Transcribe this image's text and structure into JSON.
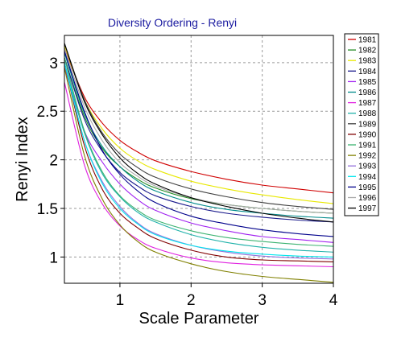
{
  "chart_data": {
    "type": "line",
    "title": "Diversity Ordering - Renyi",
    "title_color": "#1a1aa0",
    "xlabel": "Scale Parameter",
    "ylabel": "Renyi Index",
    "xlim": [
      0.22,
      4
    ],
    "ylim": [
      0.73,
      3.28
    ],
    "x_ticks": [
      1,
      2,
      3,
      4
    ],
    "x_tick_labels": [
      "1",
      "2",
      "3",
      "4"
    ],
    "y_ticks": [
      1,
      1.5,
      2,
      2.5,
      3
    ],
    "y_tick_labels": [
      "1",
      "1.5",
      "2",
      "2.5",
      "3"
    ],
    "grid": true,
    "grid_style": "dashed",
    "legend_position": "right",
    "x": [
      0.22,
      0.5,
      0.75,
      1,
      1.25,
      1.5,
      2,
      2.5,
      3,
      3.5,
      4
    ],
    "series": [
      {
        "name": "1981",
        "color": "#d00000",
        "values": [
          3.15,
          2.65,
          2.38,
          2.2,
          2.08,
          1.99,
          1.88,
          1.8,
          1.74,
          1.7,
          1.66
        ]
      },
      {
        "name": "1982",
        "color": "#228b22",
        "values": [
          3.05,
          2.45,
          2.12,
          1.93,
          1.8,
          1.71,
          1.6,
          1.54,
          1.5,
          1.47,
          1.45
        ]
      },
      {
        "name": "1983",
        "color": "#e8e800",
        "values": [
          3.18,
          2.62,
          2.32,
          2.12,
          1.99,
          1.9,
          1.78,
          1.7,
          1.64,
          1.59,
          1.55
        ]
      },
      {
        "name": "1984",
        "color": "#1a1a8c",
        "values": [
          3.05,
          2.42,
          2.09,
          1.87,
          1.73,
          1.63,
          1.52,
          1.45,
          1.41,
          1.38,
          1.36
        ]
      },
      {
        "name": "1985",
        "color": "#a020f0",
        "values": [
          2.95,
          2.3,
          1.98,
          1.75,
          1.59,
          1.48,
          1.35,
          1.27,
          1.21,
          1.18,
          1.15
        ]
      },
      {
        "name": "1986",
        "color": "#008b8b",
        "values": [
          3.1,
          2.48,
          2.14,
          1.93,
          1.78,
          1.68,
          1.56,
          1.49,
          1.45,
          1.42,
          1.4
        ]
      },
      {
        "name": "1987",
        "color": "#e020e0",
        "values": [
          2.8,
          1.95,
          1.55,
          1.32,
          1.18,
          1.09,
          0.99,
          0.94,
          0.92,
          0.91,
          0.9
        ]
      },
      {
        "name": "1988",
        "color": "#20b2aa",
        "values": [
          3.0,
          2.28,
          1.86,
          1.62,
          1.46,
          1.36,
          1.23,
          1.15,
          1.1,
          1.07,
          1.05
        ]
      },
      {
        "name": "1989",
        "color": "#404040",
        "values": [
          3.2,
          2.62,
          2.28,
          2.06,
          1.92,
          1.82,
          1.7,
          1.62,
          1.56,
          1.52,
          1.49
        ]
      },
      {
        "name": "1990",
        "color": "#800000",
        "values": [
          3.0,
          2.15,
          1.7,
          1.45,
          1.3,
          1.19,
          1.07,
          1.0,
          0.97,
          0.96,
          0.95
        ]
      },
      {
        "name": "1991",
        "color": "#3cb371",
        "values": [
          3.05,
          2.3,
          1.88,
          1.63,
          1.48,
          1.38,
          1.27,
          1.2,
          1.16,
          1.13,
          1.11
        ]
      },
      {
        "name": "1992",
        "color": "#808000",
        "values": [
          2.95,
          2.05,
          1.6,
          1.33,
          1.16,
          1.05,
          0.93,
          0.85,
          0.8,
          0.77,
          0.74
        ]
      },
      {
        "name": "1993",
        "color": "#9370db",
        "values": [
          3.0,
          2.2,
          1.78,
          1.52,
          1.35,
          1.24,
          1.12,
          1.05,
          1.01,
          0.99,
          0.98
        ]
      },
      {
        "name": "1994",
        "color": "#00e5ee",
        "values": [
          3.0,
          2.2,
          1.76,
          1.5,
          1.34,
          1.23,
          1.12,
          1.06,
          1.03,
          1.01,
          1.0
        ]
      },
      {
        "name": "1995",
        "color": "#00008b",
        "values": [
          3.12,
          2.5,
          2.1,
          1.85,
          1.68,
          1.56,
          1.42,
          1.34,
          1.28,
          1.24,
          1.21
        ]
      },
      {
        "name": "1996",
        "color": "#aaaaaa",
        "values": [
          3.15,
          2.55,
          2.2,
          1.97,
          1.83,
          1.73,
          1.61,
          1.54,
          1.5,
          1.47,
          1.45
        ]
      },
      {
        "name": "1997",
        "color": "#000000",
        "values": [
          3.2,
          2.6,
          2.26,
          2.02,
          1.86,
          1.75,
          1.61,
          1.52,
          1.45,
          1.4,
          1.36
        ]
      }
    ]
  }
}
